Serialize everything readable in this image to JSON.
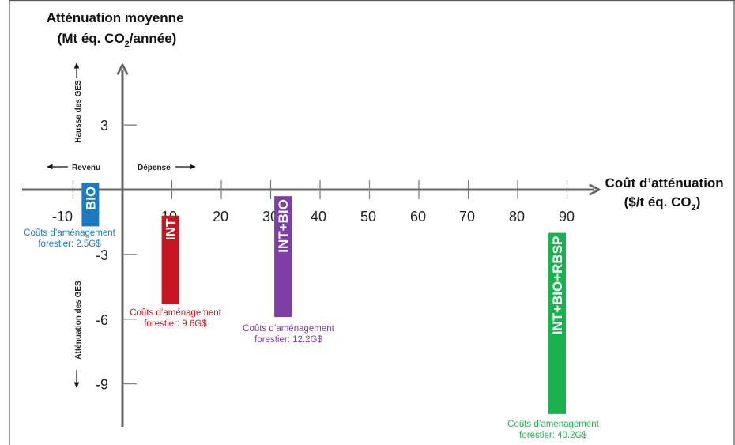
{
  "chart_data": {
    "type": "bar",
    "y_title_line1": "Atténuation moyenne",
    "y_title_line2_pre": "(Mt éq. CO",
    "y_title_line2_sub": "2",
    "y_title_line2_post": "/année)",
    "x_title_line1": "Coût d’atténuation",
    "x_title_line2_pre": "($/t éq. CO",
    "x_title_line2_sub": "2",
    "x_title_line2_post": ")",
    "x_ticks": [
      -10,
      10,
      20,
      30,
      40,
      50,
      60,
      70,
      80,
      90
    ],
    "x_tick_labels": [
      "-10",
      "10",
      "20",
      "30",
      "40",
      "50",
      "60",
      "70",
      "80",
      "90"
    ],
    "y_ticks": [
      3,
      -3,
      -6,
      -9
    ],
    "y_tick_labels": [
      "3",
      "-3",
      "-6",
      "-9"
    ],
    "xlim": [
      -12,
      95
    ],
    "ylim": [
      -11,
      6
    ],
    "upper_side_label": "Hausse des GES",
    "lower_side_label": "Atténuation des GES",
    "left_direction_label": "Revenu",
    "right_direction_label": "Dépense",
    "bars": [
      {
        "name": "BIO",
        "x": -6.5,
        "y_top": 0.3,
        "y_bottom": -1.7,
        "color": "#1a7bc2",
        "annotation_line1": "Coûts d’aménagement",
        "annotation_line2": "forestier: 2.5G$"
      },
      {
        "name": "INT",
        "x": 9.7,
        "y_top": -1.2,
        "y_bottom": -5.3,
        "color": "#c8141e",
        "annotation_line1": "Coûts d’aménagement",
        "annotation_line2": "forestier: 9.6G$"
      },
      {
        "name": "INT+BIO",
        "x": 32.5,
        "y_top": -0.3,
        "y_bottom": -5.9,
        "color": "#7b3fa6",
        "annotation_line1": "Coûts d’aménagement",
        "annotation_line2": "forestier: 12.2G$"
      },
      {
        "name": "INT+BIO+RBSP",
        "x": 88,
        "y_top": -2.0,
        "y_bottom": -10.4,
        "color": "#1ab24f",
        "annotation_line1": "Coûts d’aménagement",
        "annotation_line2": "forestier: 40.2G$"
      }
    ]
  }
}
